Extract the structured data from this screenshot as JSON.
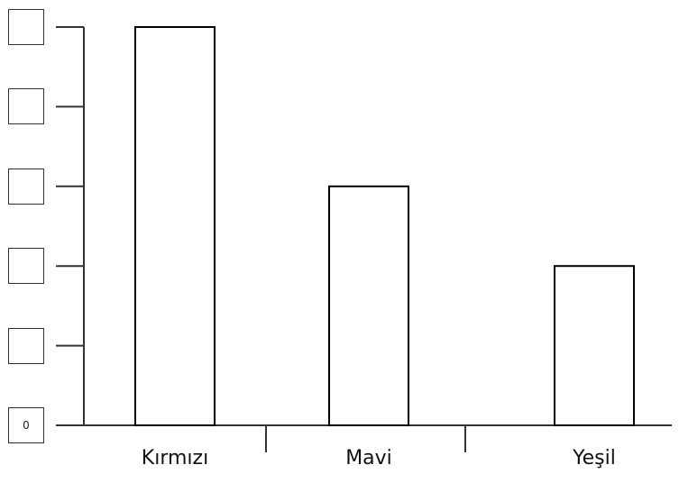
{
  "chart_data": {
    "type": "bar",
    "categories": [
      "Kırmızı",
      "Mavi",
      "Yeşil"
    ],
    "values": [
      5,
      3,
      2
    ],
    "title": "",
    "xlabel": "",
    "ylabel": "",
    "ylim": [
      0,
      5
    ],
    "y_tick_labels": [
      "0",
      "",
      "",
      "",
      "",
      ""
    ],
    "grid": false,
    "bar_fill": "#ffffff",
    "bar_stroke": "#000000"
  }
}
